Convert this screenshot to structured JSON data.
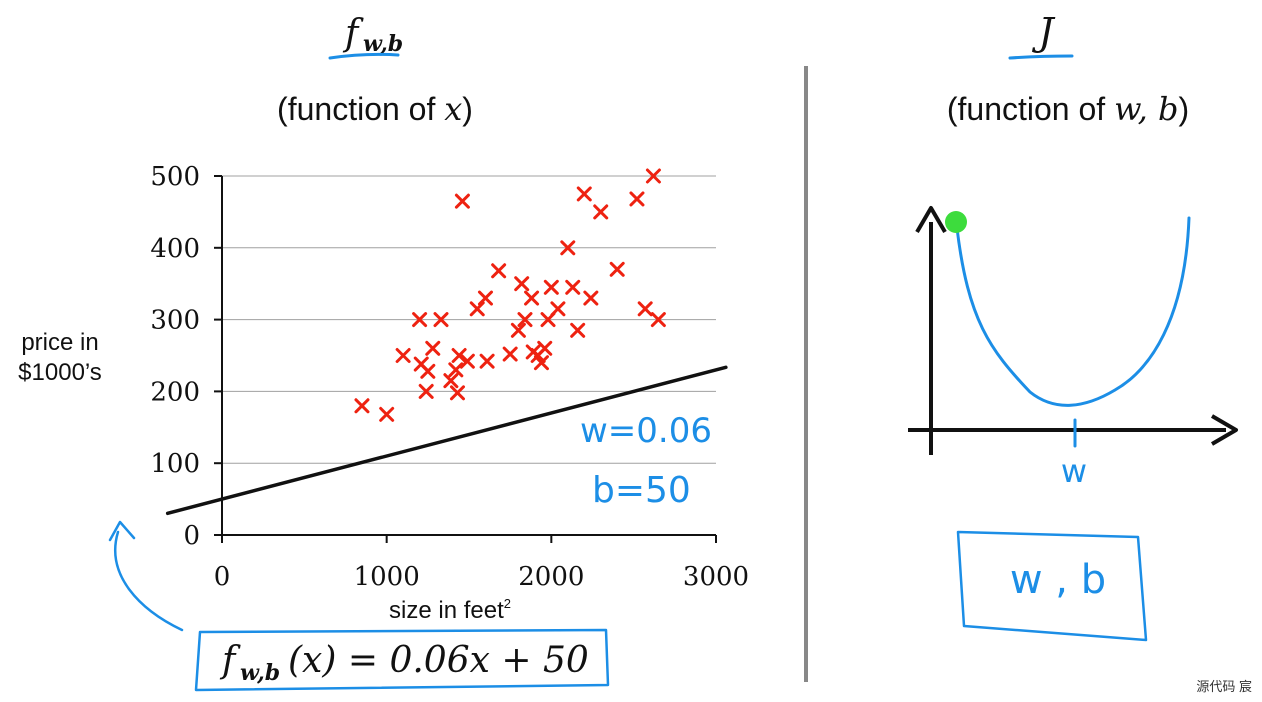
{
  "left_panel": {
    "heading_f": "f",
    "heading_sub": "w,b",
    "subtitle_prefix": "(function of ",
    "subtitle_var": "x",
    "subtitle_suffix": ")"
  },
  "right_panel": {
    "heading": "J",
    "subtitle_prefix": "(function of ",
    "subtitle_var": "w, b",
    "subtitle_suffix": ")",
    "axis_label": "w",
    "box_text": "w , b",
    "dot_color": "#3ddc3d"
  },
  "annotations": {
    "w_value": "w=0.06",
    "b_value": "b=50",
    "formula_f": "f",
    "formula_sub": "w,b",
    "formula_rest": "(x) = 0.06x + 50",
    "ink_color": "#1c8ee6"
  },
  "footer": {
    "watermark": "源代码   宸"
  },
  "chart_data": {
    "type": "scatter",
    "title": "",
    "xlabel": "size in feet",
    "xlabel_sup": "2",
    "ylabel_line1": "price in",
    "ylabel_line2": "$1000’s",
    "xlim": [
      0,
      3000
    ],
    "ylim": [
      0,
      500
    ],
    "xticks": [
      0,
      1000,
      2000,
      3000
    ],
    "yticks": [
      0,
      100,
      200,
      300,
      400,
      500
    ],
    "marker_color": "#ee2211",
    "points": [
      [
        850,
        180
      ],
      [
        1000,
        168
      ],
      [
        1100,
        250
      ],
      [
        1200,
        300
      ],
      [
        1210,
        238
      ],
      [
        1240,
        200
      ],
      [
        1250,
        228
      ],
      [
        1280,
        260
      ],
      [
        1330,
        300
      ],
      [
        1390,
        215
      ],
      [
        1420,
        230
      ],
      [
        1430,
        198
      ],
      [
        1440,
        250
      ],
      [
        1460,
        465
      ],
      [
        1490,
        242
      ],
      [
        1550,
        315
      ],
      [
        1600,
        330
      ],
      [
        1610,
        242
      ],
      [
        1680,
        368
      ],
      [
        1750,
        252
      ],
      [
        1800,
        285
      ],
      [
        1820,
        350
      ],
      [
        1840,
        300
      ],
      [
        1880,
        330
      ],
      [
        1890,
        255
      ],
      [
        1920,
        250
      ],
      [
        1940,
        240
      ],
      [
        1960,
        260
      ],
      [
        1980,
        300
      ],
      [
        2000,
        345
      ],
      [
        2040,
        315
      ],
      [
        2100,
        400
      ],
      [
        2130,
        345
      ],
      [
        2160,
        285
      ],
      [
        2200,
        475
      ],
      [
        2240,
        330
      ],
      [
        2300,
        450
      ],
      [
        2400,
        370
      ],
      [
        2520,
        468
      ],
      [
        2570,
        315
      ],
      [
        2620,
        500
      ],
      [
        2650,
        300
      ]
    ],
    "fit_line": {
      "w": 0.06,
      "b": 50,
      "x_range": [
        -330,
        3060
      ]
    }
  }
}
